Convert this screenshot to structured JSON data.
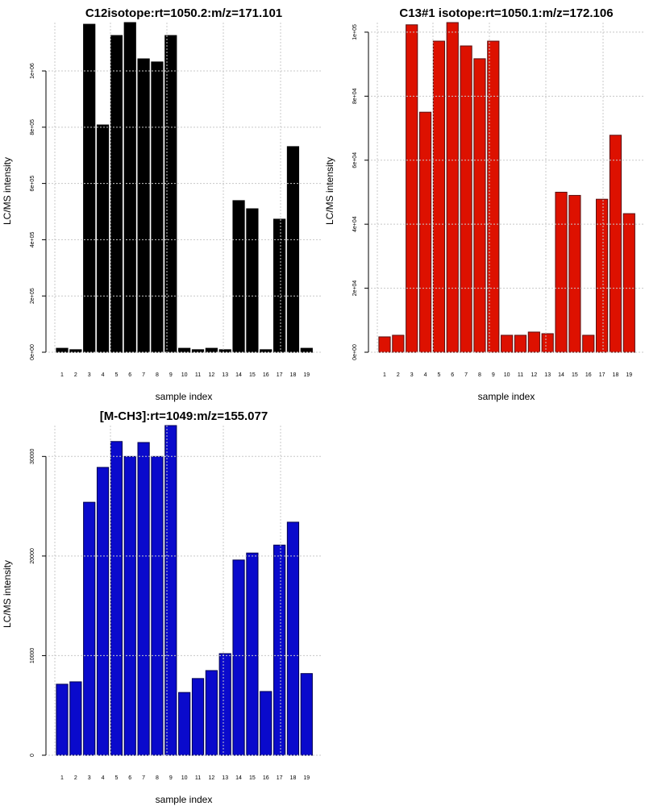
{
  "chart_data": [
    {
      "type": "bar",
      "title": "C12isotope:rt=1050.2:m/z=171.101",
      "xlabel": "sample index",
      "ylabel": "LC/MS intensity",
      "categories": [
        "1",
        "2",
        "3",
        "4",
        "5",
        "6",
        "7",
        "8",
        "9",
        "10",
        "11",
        "12",
        "13",
        "14",
        "15",
        "16",
        "17",
        "18",
        "19"
      ],
      "values": [
        14000,
        9000,
        1166000,
        808000,
        1126000,
        1172000,
        1043000,
        1032000,
        1126000,
        14000,
        9000,
        14000,
        9000,
        539000,
        510000,
        9000,
        473000,
        731000,
        14000
      ],
      "yticks": [
        0,
        200000,
        400000,
        600000,
        800000,
        1000000
      ],
      "ytick_labels": [
        "0e+00",
        "2e+05",
        "4e+05",
        "6e+05",
        "8e+05",
        "1e+06"
      ],
      "ylim": [
        0,
        1172000
      ],
      "grid": true,
      "bar_color": "#000000",
      "border_color": "#000000"
    },
    {
      "type": "bar",
      "title": "C13#1 isotope:rt=1050.1:m/z=172.106",
      "xlabel": "sample index",
      "ylabel": "LC/MS intensity",
      "categories": [
        "1",
        "2",
        "3",
        "4",
        "5",
        "6",
        "7",
        "8",
        "9",
        "10",
        "11",
        "12",
        "13",
        "14",
        "15",
        "16",
        "17",
        "18",
        "19"
      ],
      "values": [
        4800,
        5300,
        102300,
        75000,
        97200,
        103000,
        95700,
        91700,
        97200,
        5300,
        5300,
        6300,
        5800,
        50000,
        49000,
        5300,
        47800,
        67800,
        43300
      ],
      "yticks": [
        0,
        20000,
        40000,
        60000,
        80000,
        100000
      ],
      "ytick_labels": [
        "0e+00",
        "2e+04",
        "4e+04",
        "6e+04",
        "8e+04",
        "1e+05"
      ],
      "ylim": [
        0,
        103000
      ],
      "grid": true,
      "bar_color": "#dd1100",
      "border_color": "#5a1010"
    },
    {
      "type": "bar",
      "title": "[M-CH3]:rt=1049:m/z=155.077",
      "xlabel": "sample index",
      "ylabel": "LC/MS intensity",
      "categories": [
        "1",
        "2",
        "3",
        "4",
        "5",
        "6",
        "7",
        "8",
        "9",
        "10",
        "11",
        "12",
        "13",
        "14",
        "15",
        "16",
        "17",
        "18",
        "19"
      ],
      "values": [
        7130,
        7370,
        25400,
        28900,
        31500,
        30000,
        31400,
        30000,
        33100,
        6300,
        7700,
        8500,
        10200,
        19600,
        20300,
        6400,
        21100,
        23400,
        8200
      ],
      "yticks": [
        0,
        10000,
        20000,
        30000
      ],
      "ytick_labels": [
        "0",
        "10000",
        "20000",
        "30000"
      ],
      "ylim": [
        0,
        33100
      ],
      "grid": true,
      "bar_color": "#0a0acc",
      "border_color": "#000050"
    }
  ]
}
